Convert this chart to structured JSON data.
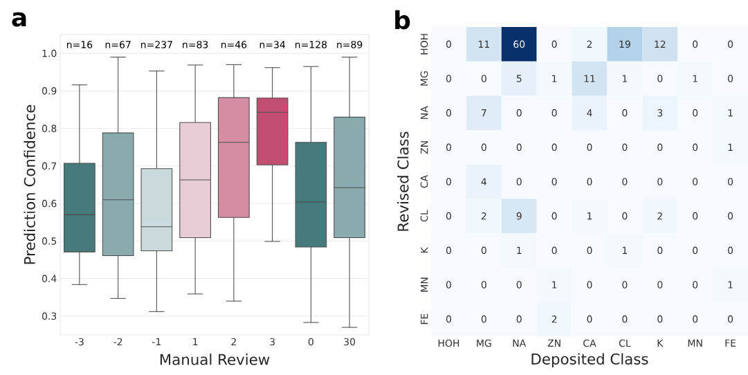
{
  "chart_data": [
    {
      "type": "box",
      "xlabel": "Manual Review",
      "ylabel": "Prediction Confidence",
      "categories": [
        "-3",
        "-2",
        "-1",
        "1",
        "2",
        "3",
        "0",
        "30"
      ],
      "colors": [
        "#477a7d",
        "#8aabae",
        "#cbdadc",
        "#e8ccd6",
        "#d68da3",
        "#c24f72",
        "#477a7d",
        "#8aabae"
      ],
      "boxes": [
        {
          "low": 0.384,
          "q1": 0.471,
          "median": 0.57,
          "q3": 0.707,
          "high": 0.916
        },
        {
          "low": 0.347,
          "q1": 0.461,
          "median": 0.61,
          "q3": 0.788,
          "high": 0.99
        },
        {
          "low": 0.312,
          "q1": 0.474,
          "median": 0.538,
          "q3": 0.693,
          "high": 0.953
        },
        {
          "low": 0.359,
          "q1": 0.509,
          "median": 0.663,
          "q3": 0.816,
          "high": 0.969
        },
        {
          "low": 0.34,
          "q1": 0.563,
          "median": 0.763,
          "q3": 0.882,
          "high": 0.97
        },
        {
          "low": 0.499,
          "q1": 0.703,
          "median": 0.843,
          "q3": 0.881,
          "high": 0.962
        },
        {
          "low": 0.283,
          "q1": 0.484,
          "median": 0.604,
          "q3": 0.763,
          "high": 0.965
        },
        {
          "low": 0.27,
          "q1": 0.509,
          "median": 0.642,
          "q3": 0.83,
          "high": 0.99
        }
      ],
      "ylim": [
        0.25,
        1.05
      ],
      "yticks": [
        {
          "value": 0.3,
          "label": "0.3"
        },
        {
          "value": 0.4,
          "label": "0.4"
        },
        {
          "value": 0.5,
          "label": "0.5"
        },
        {
          "value": 0.6,
          "label": "0.6"
        },
        {
          "value": 0.7,
          "label": "0.7"
        },
        {
          "value": 0.8,
          "label": "0.8"
        },
        {
          "value": 0.9,
          "label": "0.9"
        },
        {
          "value": 1.0,
          "label": "1.0"
        }
      ],
      "grid": "y",
      "annotations": [
        "a",
        "n=16",
        "n=67",
        "n=237",
        "n=83",
        "n=46",
        "n=34",
        "n=128",
        "n=89"
      ]
    },
    {
      "type": "heatmap",
      "xlabel": "Deposited Class",
      "ylabel": "Revised Class",
      "categories": [
        "HOH",
        "MG",
        "NA",
        "ZN",
        "CA",
        "CL",
        "K",
        "MN",
        "FE"
      ],
      "y_categories": [
        "HOH",
        "MG",
        "NA",
        "ZN",
        "CA",
        "CL",
        "K",
        "MN",
        "FE"
      ],
      "cells": [
        [
          0,
          11,
          60,
          0,
          2,
          19,
          12,
          0,
          0
        ],
        [
          0,
          0,
          5,
          1,
          11,
          1,
          0,
          1,
          0
        ],
        [
          0,
          7,
          0,
          0,
          4,
          0,
          3,
          0,
          1
        ],
        [
          0,
          0,
          0,
          0,
          0,
          0,
          0,
          0,
          1
        ],
        [
          0,
          4,
          0,
          0,
          0,
          0,
          0,
          0,
          0
        ],
        [
          0,
          2,
          9,
          0,
          1,
          0,
          2,
          0,
          0
        ],
        [
          0,
          0,
          1,
          0,
          0,
          1,
          0,
          0,
          0
        ],
        [
          0,
          0,
          0,
          1,
          0,
          0,
          0,
          0,
          1
        ],
        [
          0,
          0,
          0,
          2,
          0,
          0,
          0,
          0,
          0
        ]
      ],
      "data_labels": true,
      "annotations": [
        "b"
      ]
    }
  ]
}
